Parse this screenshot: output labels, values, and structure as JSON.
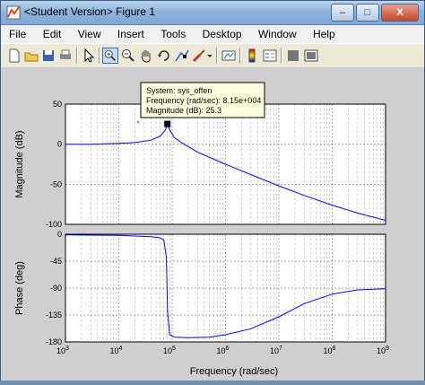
{
  "window": {
    "title": "<Student Version> Figure 1",
    "minimize": "–",
    "maximize": "□",
    "close": "X"
  },
  "menu": [
    "File",
    "Edit",
    "View",
    "Insert",
    "Tools",
    "Desktop",
    "Window",
    "Help"
  ],
  "toolbar": {
    "icons": [
      "new-figure-icon",
      "open-file-icon",
      "save-icon",
      "print-icon",
      "arrow-pointer-icon",
      "zoom-in-icon",
      "zoom-out-icon",
      "pan-hand-icon",
      "rotate-3d-icon",
      "data-cursor-icon",
      "brush-icon",
      "link-plot-icon",
      "colorbar-icon",
      "legend-icon",
      "hide-plot-tools-icon",
      "show-plot-tools-icon"
    ],
    "active": "zoom-in-icon"
  },
  "datatip": {
    "line1": "System: sys_offen",
    "line2": "Frequency (rad/sec): 8.15e+004",
    "line3": "Magnitude (dB): 25.3"
  },
  "colors": {
    "curve": "#0000ff",
    "tip_bg": "#ffffe1",
    "grid": "#000000"
  },
  "chart_data": [
    {
      "type": "line",
      "ylabel": "Magnitude (dB)",
      "xscale": "log",
      "xlim": [
        1000,
        1000000000
      ],
      "ylim": [
        -100,
        50
      ],
      "yticks": [
        50,
        0,
        -50,
        -100
      ],
      "grid": true,
      "series": [
        {
          "x": [
            1000,
            3000,
            10000,
            20000,
            40000,
            60000,
            75000,
            81500,
            90000,
            110000,
            150000,
            300000,
            1000000,
            3000000,
            10000000,
            30000000,
            100000000,
            300000000,
            1000000000
          ],
          "y": [
            0,
            0,
            1,
            2,
            5,
            10,
            18,
            25.3,
            18,
            8,
            2,
            -10,
            -25,
            -38,
            -52,
            -64,
            -76,
            -86,
            -95
          ]
        }
      ]
    },
    {
      "type": "line",
      "xlabel": "Frequency  (rad/sec)",
      "ylabel": "Phase (deg)",
      "xscale": "log",
      "xlim": [
        1000,
        1000000000
      ],
      "ylim": [
        -180,
        0
      ],
      "yticks": [
        0,
        -45,
        -90,
        -135,
        -180
      ],
      "xticks": [
        "10^3",
        "10^4",
        "10^5",
        "10^6",
        "10^7",
        "10^8",
        "10^9"
      ],
      "grid": true,
      "series": [
        {
          "x": [
            1000,
            10000,
            40000,
            60000,
            70000,
            78000,
            82000,
            90000,
            110000,
            200000,
            500000,
            1000000,
            3000000,
            10000000,
            30000000,
            100000000,
            300000000,
            1000000000
          ],
          "y": [
            -1,
            -2,
            -4,
            -6,
            -10,
            -40,
            -130,
            -168,
            -172,
            -173,
            -172,
            -168,
            -158,
            -138,
            -116,
            -100,
            -93,
            -91
          ]
        }
      ]
    }
  ]
}
